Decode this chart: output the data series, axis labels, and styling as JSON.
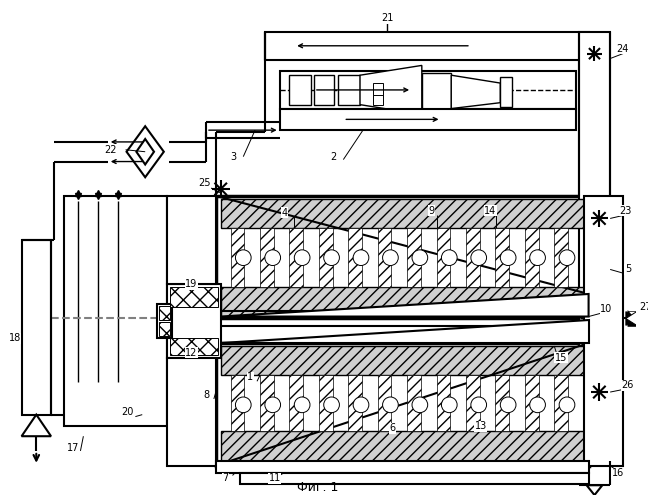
{
  "title": "Фиг. 1",
  "bg_color": "#ffffff",
  "line_color": "#000000"
}
